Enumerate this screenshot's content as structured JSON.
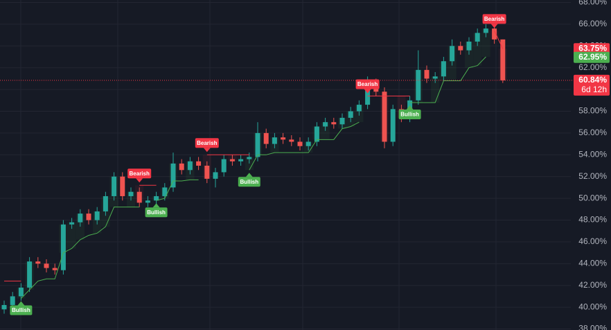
{
  "chart_data": {
    "type": "candlestick",
    "open": [
      39.8,
      40.2,
      41.0,
      41.8,
      44.2,
      44.0,
      43.6,
      43.4,
      47.6,
      47.8,
      48.6,
      48.0,
      48.8,
      50.2,
      52.0,
      50.2,
      50.6,
      49.6,
      49.8,
      50.2,
      51.0,
      53.2,
      52.6,
      53.4,
      53.0,
      51.8,
      52.4,
      53.6,
      53.4,
      53.6,
      53.8,
      56.0,
      55.0,
      55.6,
      55.4,
      55.2,
      54.8,
      55.2,
      56.6,
      57.0,
      56.8,
      57.4,
      58.0,
      58.6,
      60.6,
      59.8,
      55.2,
      58.2,
      57.4,
      59.0,
      61.8,
      61.0,
      61.2,
      62.6,
      64.0,
      63.6,
      64.4,
      65.2,
      65.6,
      64.6
    ],
    "high": [
      40.6,
      41.4,
      42.2,
      44.6,
      44.6,
      44.4,
      44.0,
      48.0,
      48.2,
      49.0,
      49.0,
      49.2,
      50.6,
      52.4,
      52.4,
      51.0,
      51.0,
      50.2,
      50.6,
      51.4,
      54.2,
      53.6,
      53.8,
      53.8,
      53.4,
      52.8,
      54.0,
      54.0,
      54.0,
      54.2,
      57.0,
      56.4,
      56.0,
      56.0,
      55.8,
      55.6,
      55.6,
      57.0,
      57.4,
      57.4,
      57.8,
      58.4,
      59.0,
      61.2,
      61.0,
      60.2,
      58.6,
      58.6,
      59.4,
      63.6,
      62.2,
      61.6,
      63.0,
      64.6,
      64.4,
      64.8,
      65.6,
      66.0,
      66.0,
      64.6
    ],
    "low": [
      39.4,
      39.8,
      40.6,
      41.4,
      43.6,
      43.2,
      43.0,
      43.0,
      47.2,
      47.4,
      47.6,
      47.6,
      48.4,
      49.8,
      49.8,
      49.8,
      49.2,
      49.2,
      49.4,
      49.8,
      50.6,
      52.2,
      52.2,
      52.6,
      51.4,
      51.0,
      52.0,
      53.0,
      53.0,
      53.2,
      53.4,
      54.6,
      54.6,
      55.0,
      54.8,
      54.4,
      54.4,
      54.8,
      56.2,
      56.4,
      56.4,
      57.0,
      57.6,
      58.2,
      59.4,
      54.6,
      54.8,
      57.0,
      57.0,
      58.6,
      60.6,
      60.6,
      60.8,
      62.2,
      63.2,
      63.2,
      64.0,
      64.8,
      64.2,
      60.6
    ],
    "close": [
      40.2,
      41.0,
      41.8,
      44.2,
      44.0,
      43.6,
      43.4,
      47.6,
      47.8,
      48.6,
      48.0,
      48.8,
      50.2,
      52.0,
      50.2,
      50.6,
      49.6,
      49.8,
      50.2,
      51.0,
      53.2,
      52.6,
      53.4,
      53.0,
      51.8,
      52.4,
      53.6,
      53.4,
      53.6,
      53.8,
      56.0,
      55.0,
      55.6,
      55.4,
      55.2,
      54.8,
      55.2,
      56.6,
      57.0,
      56.8,
      57.4,
      58.0,
      58.6,
      60.6,
      59.8,
      55.2,
      58.2,
      57.4,
      59.0,
      61.8,
      61.0,
      61.2,
      62.6,
      64.0,
      63.6,
      64.4,
      65.2,
      65.6,
      64.6,
      60.84
    ],
    "supertrend_up": [
      null,
      null,
      40.8,
      41.6,
      42.4,
      42.6,
      42.6,
      45.0,
      45.4,
      46.2,
      46.6,
      46.8,
      47.4,
      49.2,
      49.2,
      49.2,
      49.2,
      null,
      49.8,
      50.0,
      51.6,
      51.6,
      51.7,
      51.7,
      null,
      null,
      null,
      null,
      null,
      52.6,
      54.0,
      54.0,
      54.2,
      54.2,
      54.2,
      54.2,
      54.2,
      55.4,
      55.4,
      55.4,
      56.4,
      56.6,
      57.0,
      null,
      null,
      null,
      null,
      null,
      58.8,
      58.8,
      58.8,
      58.8,
      60.8,
      60.8,
      60.8,
      62.0,
      62.2,
      63.0,
      null,
      null
    ],
    "supertrend_down": [
      42.4,
      42.4,
      42.4,
      null,
      null,
      null,
      null,
      null,
      null,
      null,
      null,
      null,
      null,
      null,
      null,
      null,
      51.2,
      51.2,
      51.2,
      null,
      null,
      null,
      null,
      null,
      54.0,
      54.0,
      54.0,
      54.0,
      54.0,
      54.0,
      null,
      null,
      null,
      null,
      null,
      null,
      null,
      null,
      null,
      null,
      null,
      null,
      null,
      59.4,
      59.4,
      59.4,
      59.4,
      59.4,
      59.4,
      null,
      null,
      null,
      null,
      null,
      null,
      null,
      null,
      null,
      65.4,
      63.75
    ],
    "up_color": "#26a69a",
    "down_color": "#ef5350",
    "trend_up_color": "#4caf50",
    "trend_down_color": "#f23645",
    "signals": [
      {
        "label": "Bullish",
        "index": 2
      },
      {
        "label": "Bearish",
        "index": 16
      },
      {
        "label": "Bullish",
        "index": 18
      },
      {
        "label": "Bearish",
        "index": 24
      },
      {
        "label": "Bullish",
        "index": 29
      },
      {
        "label": "Bearish",
        "index": 43
      },
      {
        "label": "Bullish",
        "index": 48
      },
      {
        "label": "Bearish",
        "index": 58
      }
    ],
    "price_labels": [
      {
        "value": 63.75,
        "label": "63.75%",
        "color": "#f23645"
      },
      {
        "value": 62.95,
        "label": "62.95%",
        "color": "#4caf50"
      },
      {
        "value": 60.84,
        "label": "60.84%",
        "color": "#f23645",
        "countdown": "6d 12h"
      }
    ],
    "ylim": [
      38,
      68
    ],
    "yticks": [
      {
        "value": 38,
        "label": "38.00%"
      },
      {
        "value": 40,
        "label": "40.00%"
      },
      {
        "value": 42,
        "label": "42.00%"
      },
      {
        "value": 44,
        "label": "44.00%"
      },
      {
        "value": 46,
        "label": "46.00%"
      },
      {
        "value": 48,
        "label": "48.00%"
      },
      {
        "value": 50,
        "label": "50.00%"
      },
      {
        "value": 52,
        "label": "52.00%"
      },
      {
        "value": 54,
        "label": "54.00%"
      },
      {
        "value": 56,
        "label": "56.00%"
      },
      {
        "value": 58,
        "label": "58.00%"
      },
      {
        "value": 60,
        "label": "60.00%"
      },
      {
        "value": 62,
        "label": "62.00%"
      },
      {
        "value": 64,
        "label": "64.00%"
      },
      {
        "value": 66,
        "label": "66.00%"
      },
      {
        "value": 68,
        "label": "68.00%"
      }
    ],
    "grid": true
  }
}
